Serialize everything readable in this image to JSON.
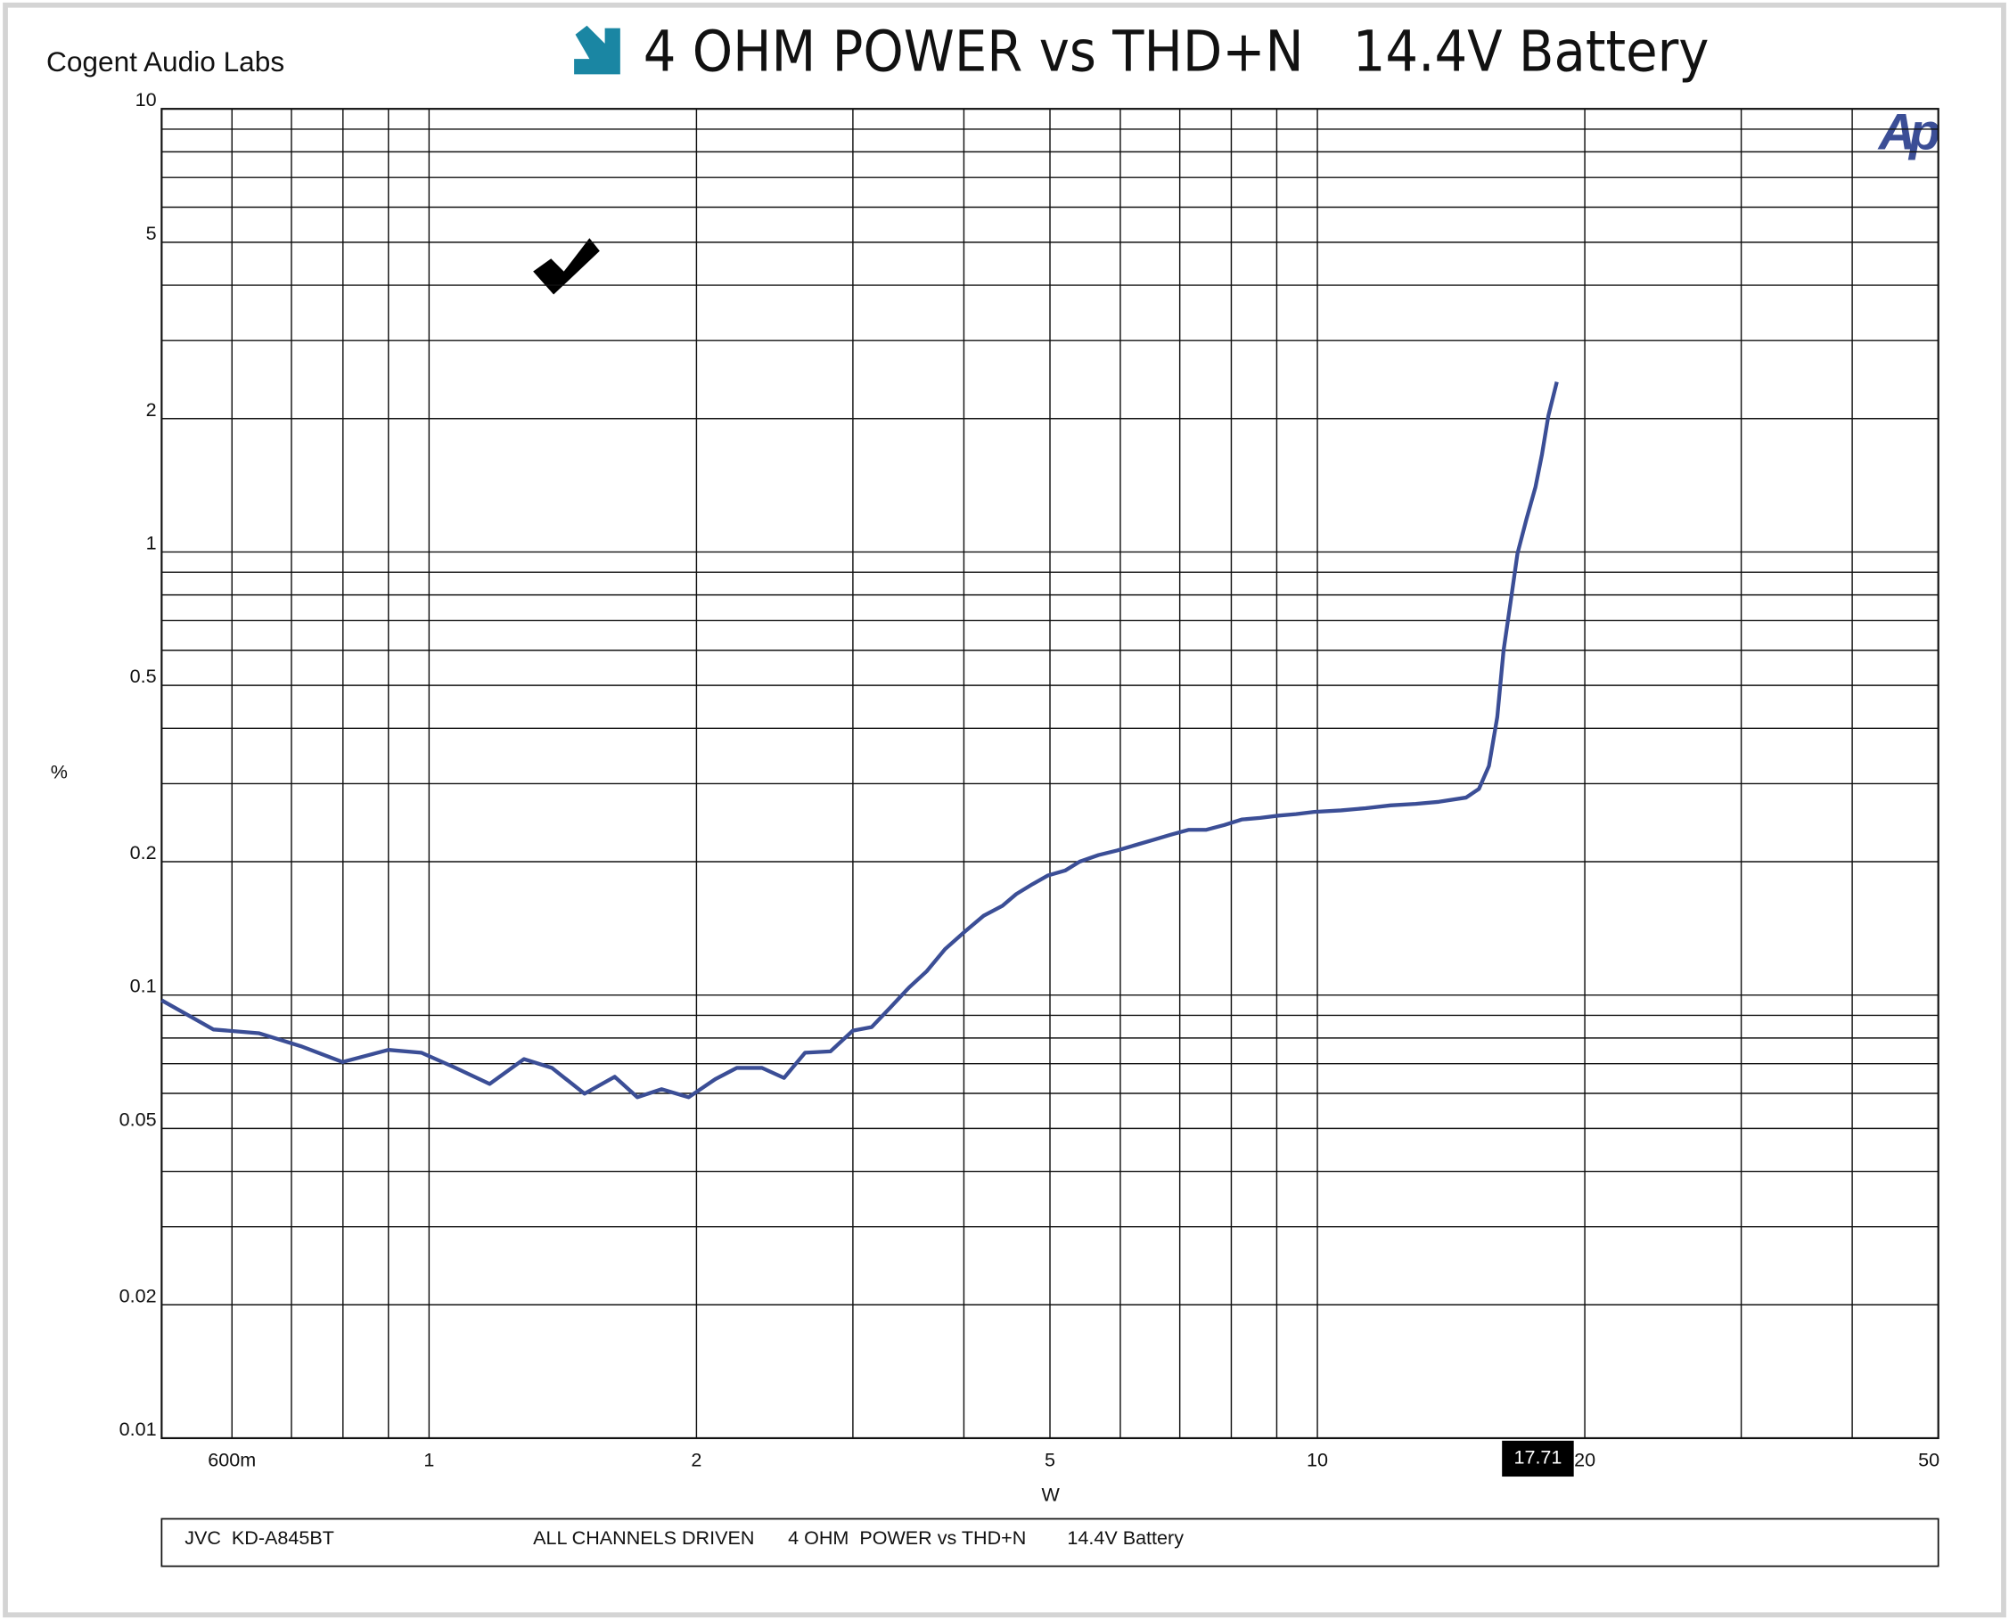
{
  "chart_data": {
    "type": "line",
    "title": "4 OHM POWER vs THD+N   14.4V Battery",
    "brand": "Cogent Audio Labs",
    "logo": "Ap",
    "x_label": "W",
    "y_label": "%",
    "footer": [
      "JVC  KD-A845BT",
      "ALL CHANNELS DRIVEN",
      "4 OHM  POWER vs THD+N",
      "14.4V Battery"
    ],
    "xscale": "log",
    "yscale": "log",
    "grid": true,
    "xlim": [
      0.5,
      50
    ],
    "ylim": [
      0.01,
      10
    ],
    "xticks": [
      {
        "value": 0.6,
        "label": "600m"
      },
      1,
      2,
      5,
      10,
      20,
      50
    ],
    "x_minor_ticks": [
      0.7,
      0.8,
      0.9,
      3,
      4,
      6,
      7,
      8,
      9,
      30,
      40
    ],
    "yticks": [
      0.01,
      0.02,
      0.05,
      0.1,
      0.2,
      0.5,
      1,
      2,
      5,
      10
    ],
    "y_minor_ticks": [
      0.03,
      0.04,
      0.06,
      0.07,
      0.08,
      0.09,
      0.3,
      0.4,
      0.6,
      0.7,
      0.8,
      0.9,
      3,
      4,
      6,
      7,
      8,
      9
    ],
    "x_cursor": 17.71,
    "x": [
      0.5,
      0.572,
      0.643,
      0.717,
      0.799,
      0.9,
      0.98,
      1.066,
      1.17,
      1.279,
      1.375,
      1.496,
      1.618,
      1.716,
      1.827,
      1.96,
      2.1,
      2.22,
      2.37,
      2.51,
      2.65,
      2.83,
      3.0,
      3.15,
      3.31,
      3.47,
      3.63,
      3.81,
      4.01,
      4.21,
      4.42,
      4.58,
      4.78,
      4.97,
      5.2,
      5.4,
      5.67,
      5.95,
      6.24,
      6.54,
      6.84,
      7.16,
      7.49,
      7.86,
      8.22,
      8.62,
      9.04,
      9.46,
      9.92,
      10.63,
      11.33,
      12.09,
      12.9,
      13.7,
      14.7,
      15.2,
      15.6,
      15.94,
      16.2,
      16.5,
      16.8,
      17.2,
      17.6,
      17.9,
      18.2,
      18.6
    ],
    "series": [
      {
        "name": "THD+N",
        "color": "#3b4e96",
        "values": [
          0.0973,
          0.0836,
          0.082,
          0.0767,
          0.0706,
          0.0752,
          0.0741,
          0.0688,
          0.063,
          0.0717,
          0.0685,
          0.0599,
          0.0654,
          0.0588,
          0.0613,
          0.0588,
          0.0646,
          0.0685,
          0.0685,
          0.065,
          0.0741,
          0.0746,
          0.0831,
          0.0847,
          0.094,
          0.104,
          0.113,
          0.127,
          0.139,
          0.151,
          0.159,
          0.169,
          0.178,
          0.186,
          0.191,
          0.2,
          0.207,
          0.212,
          0.218,
          0.224,
          0.23,
          0.236,
          0.236,
          0.242,
          0.249,
          0.251,
          0.254,
          0.256,
          0.259,
          0.261,
          0.264,
          0.268,
          0.27,
          0.273,
          0.279,
          0.292,
          0.329,
          0.424,
          0.599,
          0.771,
          0.993,
          1.19,
          1.4,
          1.66,
          2.03,
          2.42
        ]
      }
    ]
  }
}
